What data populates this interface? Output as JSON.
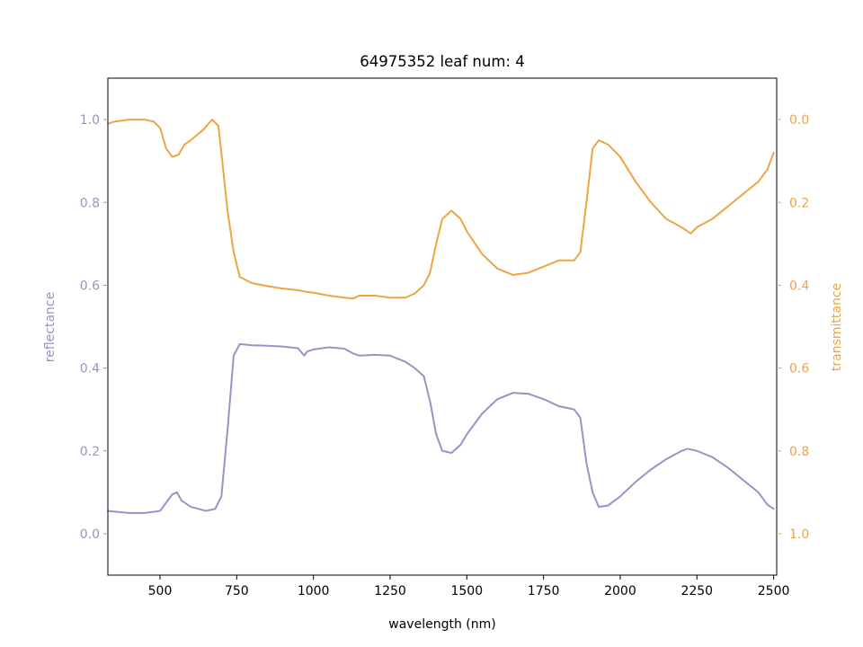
{
  "chart_data": {
    "type": "line",
    "title": "64975352 leaf num: 4",
    "xlabel": "wavelength (nm)",
    "xlim": [
      330,
      2510
    ],
    "xticks": [
      500,
      750,
      1000,
      1250,
      1500,
      1750,
      2000,
      2250,
      2500
    ],
    "grid": false,
    "legend": "none",
    "left_axis": {
      "label": "reflectance",
      "ylim": [
        -0.1,
        1.1
      ],
      "ticks": [
        0.0,
        0.2,
        0.4,
        0.6,
        0.8,
        1.0
      ],
      "color": "#9a92c6",
      "inverted": false
    },
    "right_axis": {
      "label": "transmittance",
      "ylim": [
        1.1,
        -0.1
      ],
      "ticks": [
        0.0,
        0.2,
        0.4,
        0.6,
        0.8,
        1.0
      ],
      "color": "#eda543",
      "inverted": true
    },
    "series": [
      {
        "axis": "left",
        "color": "#9a92c6",
        "x": [
          330,
          400,
          450,
          500,
          520,
          540,
          555,
          570,
          600,
          650,
          680,
          700,
          720,
          740,
          760,
          800,
          850,
          900,
          950,
          970,
          980,
          1000,
          1050,
          1100,
          1130,
          1150,
          1200,
          1250,
          1300,
          1330,
          1360,
          1380,
          1400,
          1420,
          1450,
          1480,
          1500,
          1550,
          1600,
          1650,
          1700,
          1750,
          1800,
          1850,
          1870,
          1890,
          1910,
          1930,
          1960,
          2000,
          2050,
          2100,
          2150,
          2200,
          2220,
          2250,
          2300,
          2350,
          2400,
          2450,
          2480,
          2500
        ],
        "y": [
          0.055,
          0.05,
          0.05,
          0.055,
          0.075,
          0.095,
          0.1,
          0.08,
          0.065,
          0.055,
          0.06,
          0.09,
          0.25,
          0.43,
          0.458,
          0.455,
          0.454,
          0.452,
          0.448,
          0.43,
          0.44,
          0.445,
          0.45,
          0.447,
          0.435,
          0.43,
          0.432,
          0.43,
          0.415,
          0.4,
          0.38,
          0.32,
          0.24,
          0.2,
          0.195,
          0.215,
          0.24,
          0.29,
          0.325,
          0.34,
          0.338,
          0.325,
          0.308,
          0.3,
          0.28,
          0.17,
          0.1,
          0.065,
          0.068,
          0.09,
          0.125,
          0.155,
          0.18,
          0.2,
          0.205,
          0.2,
          0.185,
          0.16,
          0.13,
          0.1,
          0.07,
          0.06
        ]
      },
      {
        "axis": "right",
        "color": "#eda543",
        "x": [
          330,
          350,
          400,
          450,
          480,
          500,
          520,
          540,
          560,
          580,
          600,
          640,
          670,
          690,
          700,
          720,
          740,
          760,
          800,
          850,
          900,
          950,
          970,
          1000,
          1050,
          1100,
          1130,
          1150,
          1200,
          1250,
          1300,
          1330,
          1360,
          1380,
          1400,
          1420,
          1450,
          1480,
          1500,
          1550,
          1600,
          1650,
          1700,
          1750,
          1800,
          1850,
          1870,
          1890,
          1910,
          1930,
          1960,
          2000,
          2050,
          2100,
          2150,
          2200,
          2230,
          2250,
          2300,
          2350,
          2400,
          2450,
          2480,
          2500
        ],
        "y": [
          0.01,
          0.005,
          0.0,
          0.0,
          0.005,
          0.02,
          0.07,
          0.09,
          0.085,
          0.06,
          0.05,
          0.025,
          0.0,
          0.015,
          0.08,
          0.22,
          0.32,
          0.38,
          0.395,
          0.402,
          0.408,
          0.412,
          0.415,
          0.418,
          0.425,
          0.43,
          0.432,
          0.425,
          0.425,
          0.43,
          0.43,
          0.42,
          0.4,
          0.37,
          0.3,
          0.24,
          0.22,
          0.24,
          0.27,
          0.325,
          0.36,
          0.375,
          0.37,
          0.355,
          0.34,
          0.34,
          0.32,
          0.2,
          0.07,
          0.05,
          0.06,
          0.09,
          0.15,
          0.2,
          0.24,
          0.26,
          0.275,
          0.26,
          0.24,
          0.21,
          0.18,
          0.15,
          0.12,
          0.08
        ]
      }
    ]
  }
}
